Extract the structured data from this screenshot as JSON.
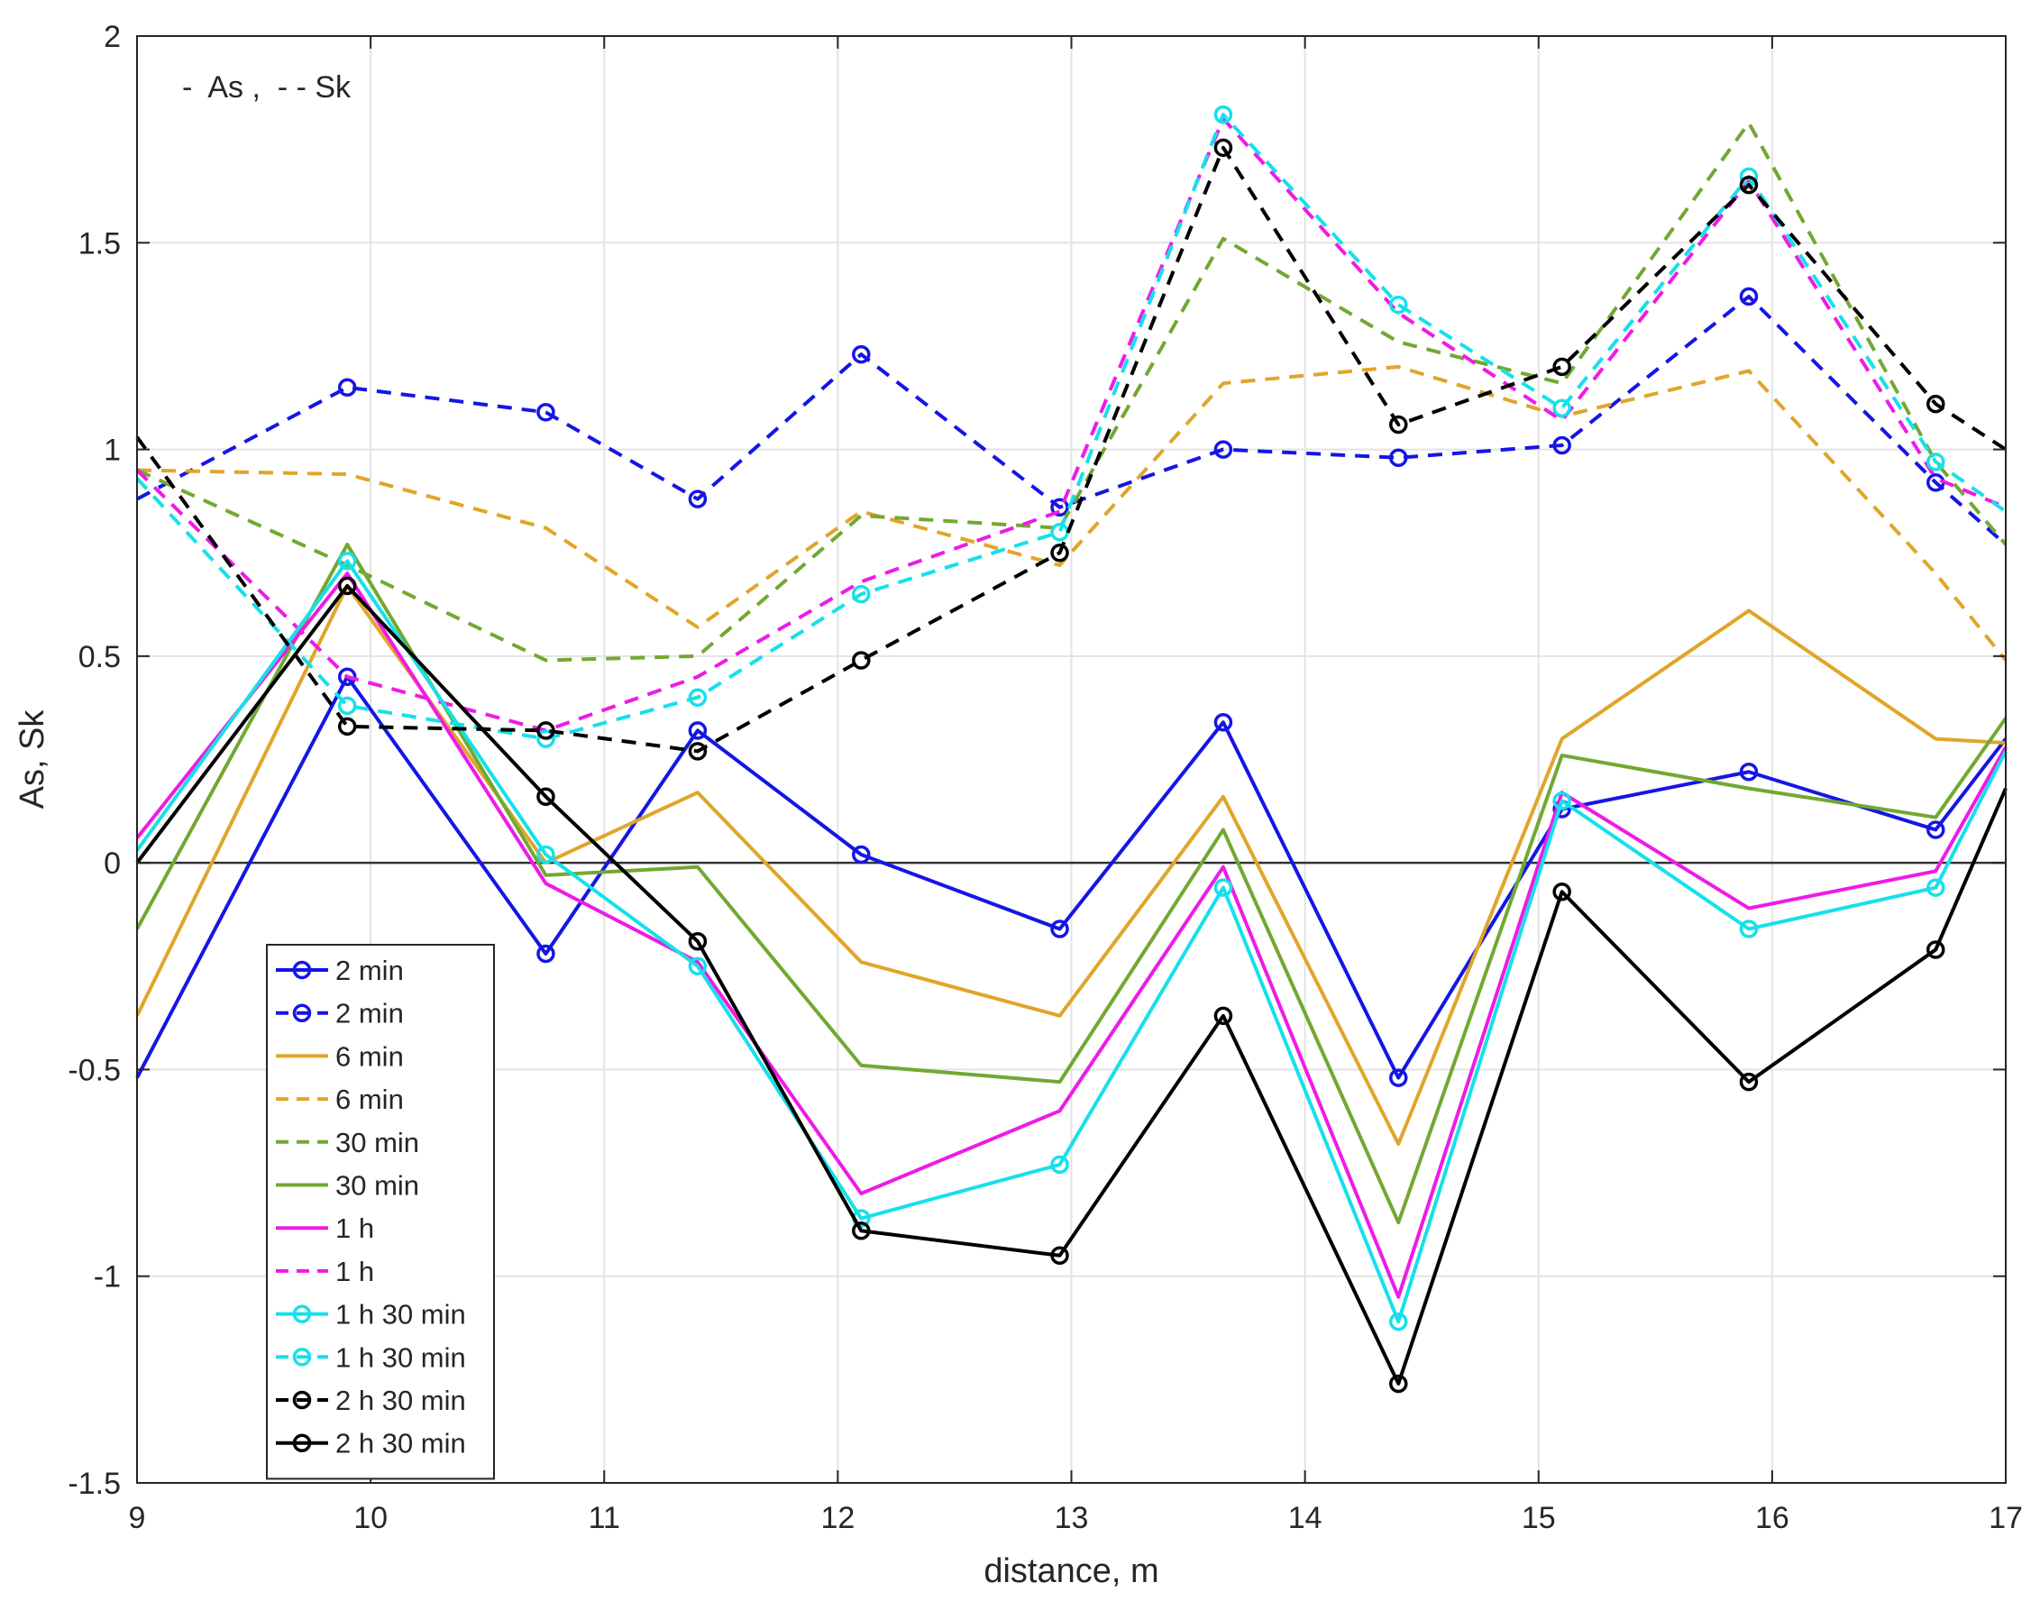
{
  "chart_data": {
    "type": "line",
    "title": "",
    "xlabel": "distance, m",
    "ylabel": "As, Sk",
    "xlim": [
      9,
      17
    ],
    "ylim": [
      -1.5,
      2
    ],
    "xticks": [
      "9",
      "10",
      "11",
      "12",
      "13",
      "14",
      "15",
      "16",
      "17"
    ],
    "yticks": [
      "-1.5",
      "-1",
      "-0.5",
      "0",
      "0.5",
      "1",
      "1.5",
      "2"
    ],
    "grid": true,
    "annotation": "-  As ,  - - Sk",
    "legend_position": "bottom-left",
    "series": [
      {
        "name": "2 min",
        "style": "solid",
        "marker": true,
        "color": "#1515e6",
        "x": [
          9,
          9.9,
          10.75,
          11.4,
          12.1,
          12.95,
          13.65,
          14.4,
          15.1,
          15.9,
          16.7,
          17
        ],
        "y": [
          -0.52,
          0.45,
          -0.22,
          0.32,
          0.02,
          -0.16,
          0.34,
          -0.52,
          0.13,
          0.22,
          0.08,
          0.3
        ]
      },
      {
        "name": "2 min",
        "style": "dashed",
        "marker": true,
        "color": "#1515e6",
        "x": [
          9,
          9.9,
          10.75,
          11.4,
          12.1,
          12.95,
          13.65,
          14.4,
          15.1,
          15.9,
          16.7,
          17
        ],
        "y": [
          0.88,
          1.15,
          1.09,
          0.88,
          1.23,
          0.86,
          1.0,
          0.98,
          1.01,
          1.37,
          0.92,
          0.77
        ]
      },
      {
        "name": "6 min",
        "style": "solid",
        "marker": false,
        "color": "#e0a52a",
        "x": [
          9,
          9.9,
          10.75,
          11.4,
          12.1,
          12.95,
          13.65,
          14.4,
          15.1,
          15.9,
          16.7,
          17
        ],
        "y": [
          -0.37,
          0.67,
          0.0,
          0.17,
          -0.24,
          -0.37,
          0.16,
          -0.68,
          0.3,
          0.61,
          0.3,
          0.29
        ]
      },
      {
        "name": "6 min",
        "style": "dashed",
        "marker": false,
        "color": "#e0a52a",
        "x": [
          9,
          9.9,
          10.75,
          11.4,
          12.1,
          12.95,
          13.65,
          14.4,
          15.1,
          15.9,
          16.7,
          17
        ],
        "y": [
          0.95,
          0.94,
          0.81,
          0.57,
          0.85,
          0.72,
          1.16,
          1.2,
          1.08,
          1.19,
          0.7,
          0.49
        ]
      },
      {
        "name": "30 min",
        "style": "dashed",
        "marker": false,
        "color": "#72a832",
        "x": [
          9,
          9.9,
          10.75,
          11.4,
          12.1,
          12.95,
          13.65,
          14.4,
          15.1,
          15.9,
          16.7,
          17
        ],
        "y": [
          0.95,
          0.72,
          0.49,
          0.5,
          0.84,
          0.81,
          1.51,
          1.26,
          1.16,
          1.79,
          0.97,
          0.77
        ]
      },
      {
        "name": "30 min",
        "style": "solid",
        "marker": false,
        "color": "#72a832",
        "x": [
          9,
          9.9,
          10.75,
          11.4,
          12.1,
          12.95,
          13.65,
          14.4,
          15.1,
          15.9,
          16.7,
          17
        ],
        "y": [
          -0.16,
          0.77,
          -0.03,
          -0.01,
          -0.49,
          -0.53,
          0.08,
          -0.87,
          0.26,
          0.18,
          0.11,
          0.35
        ]
      },
      {
        "name": "1 h",
        "style": "solid",
        "marker": false,
        "color": "#ee1be6",
        "x": [
          9,
          9.9,
          10.75,
          11.4,
          12.1,
          12.95,
          13.65,
          14.4,
          15.1,
          15.9,
          16.7,
          17
        ],
        "y": [
          0.06,
          0.7,
          -0.05,
          -0.24,
          -0.8,
          -0.6,
          -0.01,
          -1.05,
          0.17,
          -0.11,
          -0.02,
          0.28
        ]
      },
      {
        "name": "1 h",
        "style": "dashed",
        "marker": false,
        "color": "#ee1be6",
        "x": [
          9,
          9.9,
          10.75,
          11.4,
          12.1,
          12.95,
          13.65,
          14.4,
          15.1,
          15.9,
          16.7,
          17
        ],
        "y": [
          0.95,
          0.45,
          0.32,
          0.45,
          0.68,
          0.85,
          1.8,
          1.33,
          1.07,
          1.65,
          0.93,
          0.86
        ]
      },
      {
        "name": "1 h 30 min",
        "style": "solid",
        "marker": true,
        "color": "#16e0ea",
        "x": [
          9,
          9.9,
          10.75,
          11.4,
          12.1,
          12.95,
          13.65,
          14.4,
          15.1,
          15.9,
          16.7,
          17
        ],
        "y": [
          0.03,
          0.73,
          0.02,
          -0.25,
          -0.86,
          -0.73,
          -0.06,
          -1.11,
          0.15,
          -0.16,
          -0.06,
          0.27
        ]
      },
      {
        "name": "1 h 30 min",
        "style": "dashed",
        "marker": true,
        "color": "#16e0ea",
        "x": [
          9,
          9.9,
          10.75,
          11.4,
          12.1,
          12.95,
          13.65,
          14.4,
          15.1,
          15.9,
          16.7,
          17
        ],
        "y": [
          0.93,
          0.38,
          0.3,
          0.4,
          0.65,
          0.8,
          1.81,
          1.35,
          1.1,
          1.66,
          0.97,
          0.85
        ]
      },
      {
        "name": "2 h 30 min",
        "style": "dashed",
        "marker": true,
        "color": "#000000",
        "x": [
          9,
          9.9,
          10.75,
          11.4,
          12.1,
          12.95,
          13.65,
          14.4,
          15.1,
          15.9,
          16.7,
          17
        ],
        "y": [
          1.03,
          0.33,
          0.32,
          0.27,
          0.49,
          0.75,
          1.73,
          1.06,
          1.2,
          1.64,
          1.11,
          1.0
        ]
      },
      {
        "name": "2 h 30 min",
        "style": "solid",
        "marker": true,
        "color": "#000000",
        "x": [
          9,
          9.9,
          10.75,
          11.4,
          12.1,
          12.95,
          13.65,
          14.4,
          15.1,
          15.9,
          16.7,
          17
        ],
        "y": [
          0.0,
          0.67,
          0.16,
          -0.19,
          -0.89,
          -0.95,
          -0.37,
          -1.26,
          -0.07,
          -0.53,
          -0.21,
          0.18
        ]
      }
    ]
  }
}
